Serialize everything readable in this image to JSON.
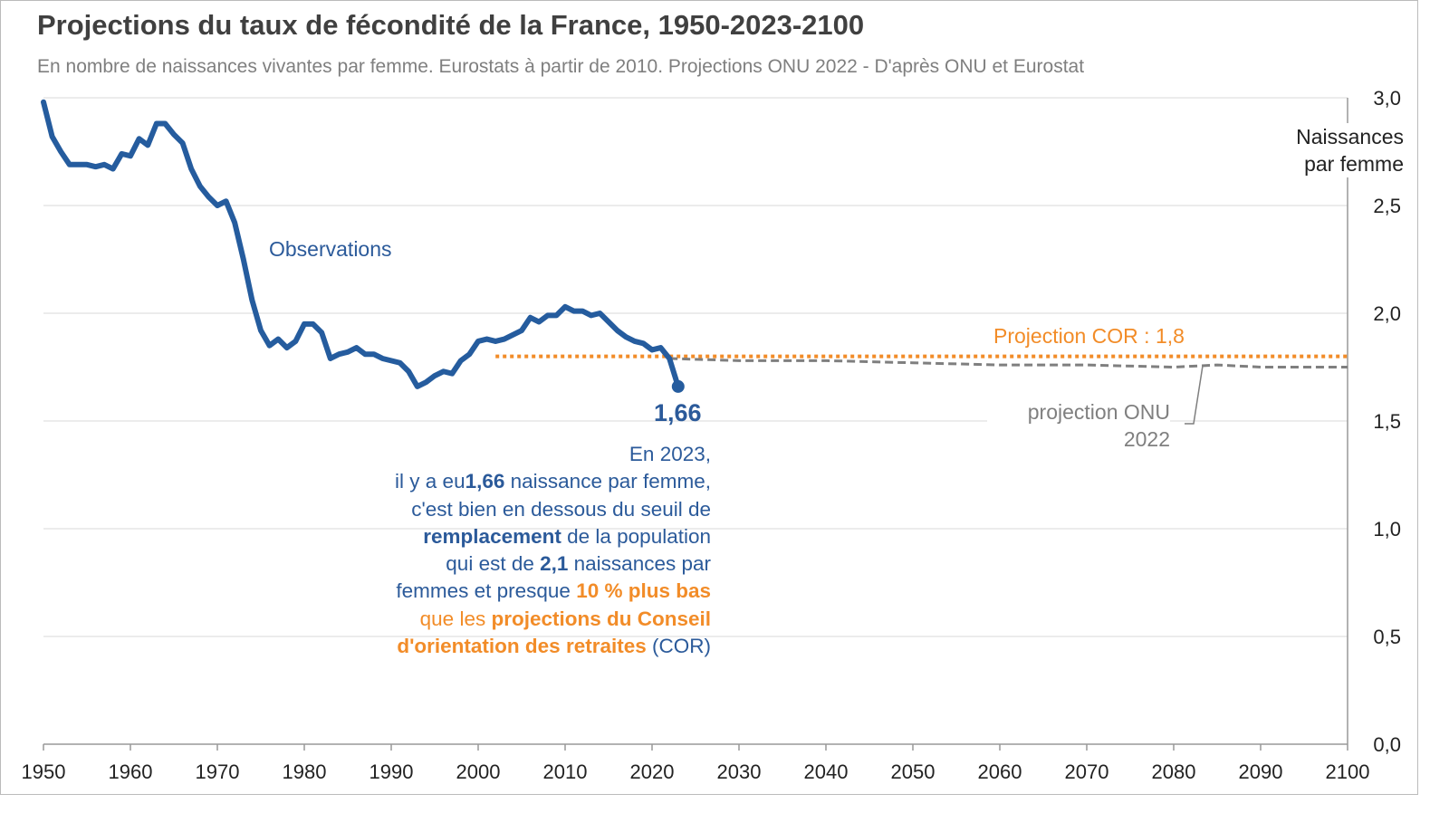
{
  "title": "Projections du taux de fécondité de la France, 1950-2023-2100",
  "subtitle": "En nombre de naissances vivantes par femme. Eurostats à partir de 2010. Projections ONU 2022 - D'après ONU et Eurostat",
  "colors": {
    "observations": "#255c9e",
    "cor": "#f28c28",
    "onu": "#7f7f7f",
    "grid": "#e6e6e6"
  },
  "note": {
    "l1": "En 2023,",
    "l2a": "il y a eu",
    "l2b": "1,66",
    "l2c": " naissance par femme,",
    "l3": "c'est bien en dessous du seuil de",
    "l4a": "remplacement",
    "l4b": " de la population",
    "l5a": "qui est de ",
    "l5b": "2,1",
    "l5c": " naissances par",
    "l6a": "femmes et presque ",
    "l6b": "10 % plus bas",
    "l7a": "que les ",
    "l7b": "projections du Conseil",
    "l8a": "d'orientation des retraites",
    "l8b": " (COR)"
  },
  "chart_data": {
    "type": "line",
    "title": "Projections du taux de fécondité de la France, 1950-2023-2100",
    "ylabel": "Naissances par femme",
    "xlim": [
      1950,
      2100
    ],
    "ylim": [
      0,
      3
    ],
    "xticks": [
      "1950",
      "1960",
      "1970",
      "1980",
      "1990",
      "2000",
      "2010",
      "2020",
      "2030",
      "2040",
      "2050",
      "2060",
      "2070",
      "2080",
      "2090",
      "2100"
    ],
    "yticks": [
      "0,0",
      "0,5",
      "1,0",
      "1,5",
      "2,0",
      "2,5",
      "3,0"
    ],
    "grid": true,
    "annotations": {
      "observations": "Observations",
      "cor": "Projection COR : 1,8",
      "onu": "projection ONU 2022",
      "last_value": "1,66",
      "ylabel_line1": "Naissances",
      "ylabel_line2": "par femme"
    },
    "series": [
      {
        "name": "Observations",
        "x": [
          1950,
          1951,
          1952,
          1953,
          1954,
          1955,
          1956,
          1957,
          1958,
          1959,
          1960,
          1961,
          1962,
          1963,
          1964,
          1965,
          1966,
          1967,
          1968,
          1969,
          1970,
          1971,
          1972,
          1973,
          1974,
          1975,
          1976,
          1977,
          1978,
          1979,
          1980,
          1981,
          1982,
          1983,
          1984,
          1985,
          1986,
          1987,
          1988,
          1989,
          1990,
          1991,
          1992,
          1993,
          1994,
          1995,
          1996,
          1997,
          1998,
          1999,
          2000,
          2001,
          2002,
          2003,
          2004,
          2005,
          2006,
          2007,
          2008,
          2009,
          2010,
          2011,
          2012,
          2013,
          2014,
          2015,
          2016,
          2017,
          2018,
          2019,
          2020,
          2021,
          2022,
          2023
        ],
        "values": [
          2.98,
          2.82,
          2.75,
          2.69,
          2.69,
          2.69,
          2.68,
          2.69,
          2.67,
          2.74,
          2.73,
          2.81,
          2.78,
          2.88,
          2.88,
          2.83,
          2.79,
          2.67,
          2.59,
          2.54,
          2.5,
          2.52,
          2.42,
          2.25,
          2.06,
          1.92,
          1.85,
          1.88,
          1.84,
          1.87,
          1.95,
          1.95,
          1.91,
          1.79,
          1.81,
          1.82,
          1.84,
          1.81,
          1.81,
          1.79,
          1.78,
          1.77,
          1.73,
          1.66,
          1.68,
          1.71,
          1.73,
          1.72,
          1.78,
          1.81,
          1.87,
          1.88,
          1.87,
          1.88,
          1.9,
          1.92,
          1.98,
          1.96,
          1.99,
          1.99,
          2.03,
          2.01,
          2.01,
          1.99,
          2.0,
          1.96,
          1.92,
          1.89,
          1.87,
          1.86,
          1.83,
          1.84,
          1.79,
          1.66
        ]
      },
      {
        "name": "Projection COR",
        "x": [
          2002,
          2100
        ],
        "values": [
          1.8,
          1.8
        ]
      },
      {
        "name": "projection ONU 2022",
        "x": [
          2022,
          2030,
          2040,
          2050,
          2060,
          2070,
          2080,
          2085,
          2090,
          2100
        ],
        "values": [
          1.79,
          1.78,
          1.78,
          1.77,
          1.76,
          1.76,
          1.75,
          1.76,
          1.75,
          1.75
        ]
      }
    ]
  }
}
